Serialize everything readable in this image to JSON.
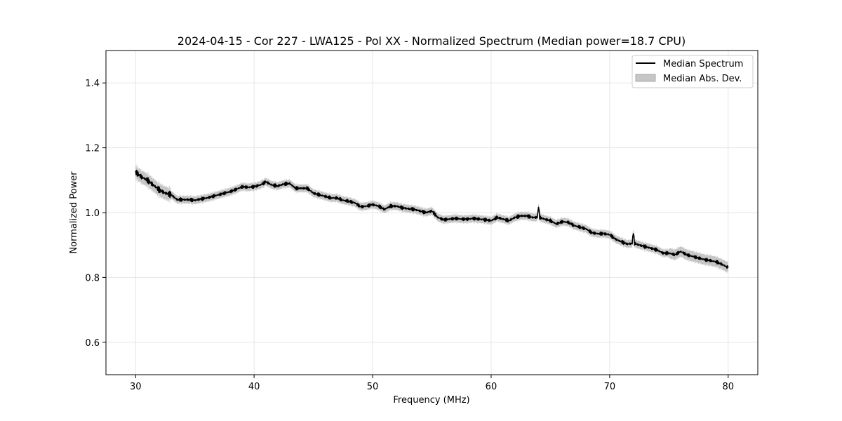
{
  "chart_data": {
    "type": "line",
    "title": "2024-04-15 - Cor 227 - LWA125 - Pol XX - Normalized Spectrum (Median power=18.7 CPU)",
    "xlabel": "Frequency (MHz)",
    "ylabel": "Normalized Power",
    "xlim": [
      27.5,
      82.5
    ],
    "ylim": [
      0.5,
      1.5
    ],
    "xticks": [
      30,
      40,
      50,
      60,
      70,
      80
    ],
    "yticks": [
      0.6,
      0.8,
      1.0,
      1.2,
      1.4
    ],
    "xtick_labels": [
      "30",
      "40",
      "50",
      "60",
      "70",
      "80"
    ],
    "ytick_labels": [
      "0.6",
      "0.8",
      "1.0",
      "1.2",
      "1.4"
    ],
    "grid": true,
    "legend_position": "top-right",
    "series": [
      {
        "name": "Median Spectrum",
        "color": "#000000",
        "x": [
          30,
          30.5,
          31,
          31.5,
          32,
          32.5,
          33,
          33.5,
          34,
          34.5,
          35,
          35.5,
          36,
          36.5,
          37,
          37.5,
          38,
          38.5,
          39,
          39.5,
          40,
          40.5,
          41,
          41.5,
          42,
          42.5,
          43,
          43.5,
          44,
          44.5,
          45,
          45.5,
          46,
          46.5,
          47,
          47.5,
          48,
          48.5,
          49,
          49.5,
          50,
          50.5,
          51,
          51.5,
          52,
          52.5,
          53,
          53.5,
          54,
          54.5,
          55,
          55.5,
          56,
          56.5,
          57,
          57.5,
          58,
          58.5,
          59,
          59.5,
          60,
          60.5,
          61,
          61.5,
          62,
          62.5,
          63,
          63.5,
          63.9,
          64,
          64.1,
          64.5,
          65,
          65.5,
          66,
          66.5,
          67,
          67.5,
          68,
          68.5,
          69,
          69.5,
          70,
          70.5,
          71,
          71.5,
          71.9,
          72,
          72.1,
          72.5,
          73,
          73.5,
          74,
          74.5,
          75,
          75.5,
          76,
          76.5,
          77,
          77.5,
          78,
          78.5,
          79,
          79.5,
          80
        ],
        "values": [
          1.125,
          1.11,
          1.1,
          1.085,
          1.07,
          1.06,
          1.055,
          1.04,
          1.04,
          1.04,
          1.038,
          1.042,
          1.045,
          1.05,
          1.055,
          1.06,
          1.065,
          1.072,
          1.08,
          1.078,
          1.08,
          1.085,
          1.095,
          1.085,
          1.082,
          1.088,
          1.09,
          1.075,
          1.075,
          1.075,
          1.06,
          1.055,
          1.05,
          1.045,
          1.045,
          1.038,
          1.035,
          1.03,
          1.018,
          1.02,
          1.025,
          1.02,
          1.01,
          1.02,
          1.02,
          1.015,
          1.012,
          1.01,
          1.005,
          1.0,
          1.005,
          0.985,
          0.978,
          0.98,
          0.982,
          0.98,
          0.98,
          0.982,
          0.98,
          0.978,
          0.975,
          0.985,
          0.98,
          0.975,
          0.985,
          0.99,
          0.99,
          0.985,
          0.985,
          1.02,
          0.985,
          0.98,
          0.975,
          0.965,
          0.972,
          0.97,
          0.96,
          0.955,
          0.95,
          0.938,
          0.935,
          0.935,
          0.932,
          0.918,
          0.91,
          0.903,
          0.905,
          0.94,
          0.905,
          0.9,
          0.895,
          0.89,
          0.885,
          0.875,
          0.875,
          0.87,
          0.88,
          0.87,
          0.865,
          0.86,
          0.855,
          0.852,
          0.848,
          0.84,
          0.83
        ]
      },
      {
        "name": "Median Abs. Dev.",
        "color": "#c0c0c0",
        "band_halfwidth": 0.012
      }
    ]
  }
}
